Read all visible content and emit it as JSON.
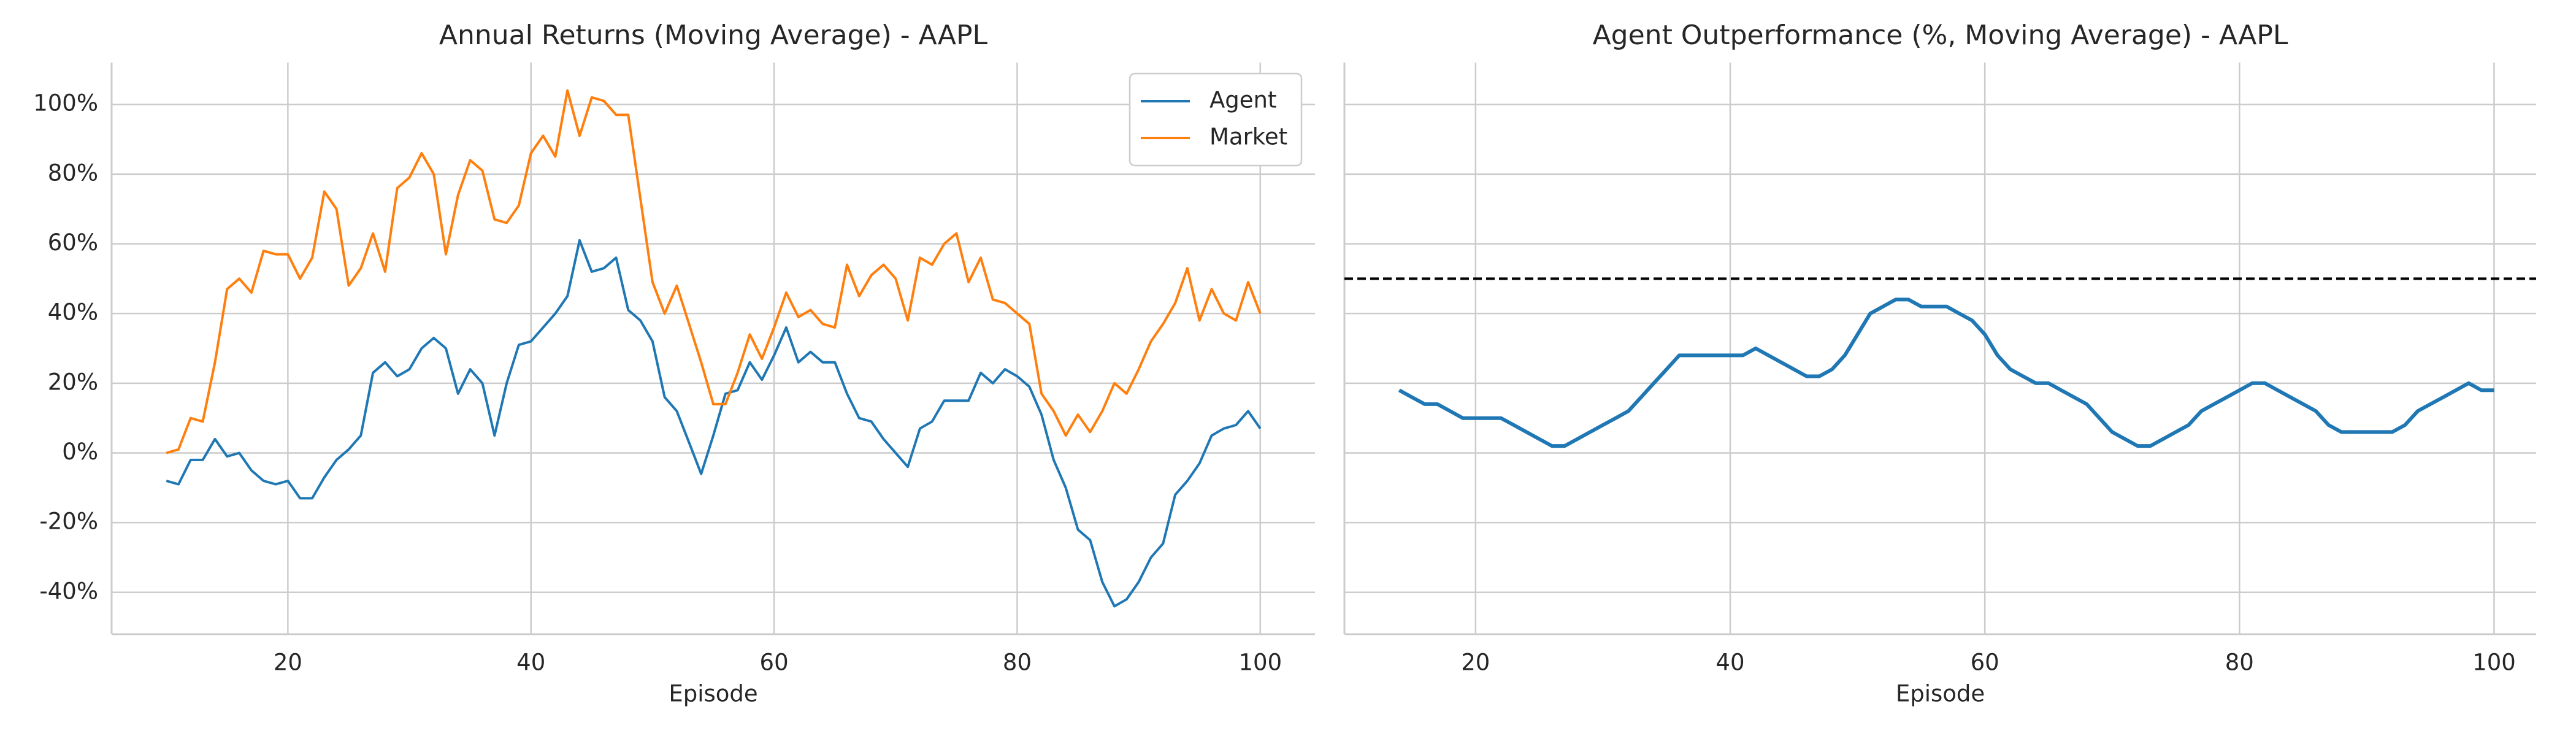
{
  "chart_data": [
    {
      "type": "line",
      "title": "Annual Returns (Moving Average) - AAPL",
      "xlabel": "Episode",
      "x": [
        10,
        11,
        12,
        13,
        14,
        15,
        16,
        17,
        18,
        19,
        20,
        21,
        22,
        23,
        24,
        25,
        26,
        27,
        28,
        29,
        30,
        31,
        32,
        33,
        34,
        35,
        36,
        37,
        38,
        39,
        40,
        41,
        42,
        43,
        44,
        45,
        46,
        47,
        48,
        49,
        50,
        51,
        52,
        53,
        54,
        55,
        56,
        57,
        58,
        59,
        60,
        61,
        62,
        63,
        64,
        65,
        66,
        67,
        68,
        69,
        70,
        71,
        72,
        73,
        74,
        75,
        76,
        77,
        78,
        79,
        80,
        81,
        82,
        83,
        84,
        85,
        86,
        87,
        88,
        89,
        90,
        91,
        92,
        93,
        94,
        95,
        96,
        97,
        98,
        99,
        100
      ],
      "series": [
        {
          "name": "Agent",
          "color": "#1f77b4",
          "values": [
            -8,
            -9,
            -2,
            -2,
            4,
            -1,
            0,
            -5,
            -8,
            -9,
            -8,
            -13,
            -13,
            -7,
            -2,
            1,
            5,
            23,
            26,
            22,
            24,
            30,
            33,
            30,
            17,
            24,
            20,
            5,
            20,
            31,
            32,
            36,
            40,
            45,
            61,
            52,
            53,
            56,
            41,
            38,
            32,
            16,
            12,
            3,
            -6,
            5,
            17,
            18,
            26,
            21,
            28,
            36,
            26,
            29,
            26,
            26,
            17,
            10,
            9,
            4,
            0,
            -4,
            7,
            9,
            15,
            15,
            15,
            23,
            20,
            24,
            22,
            19,
            11,
            -2,
            -10,
            -22,
            -25,
            -37,
            -44,
            -42,
            -37,
            -30,
            -26,
            -12,
            -8,
            -3,
            5,
            7,
            8,
            12,
            7
          ]
        },
        {
          "name": "Market",
          "color": "#ff7f0e",
          "values": [
            0,
            1,
            10,
            9,
            26,
            47,
            50,
            46,
            58,
            57,
            57,
            50,
            56,
            75,
            70,
            48,
            53,
            63,
            52,
            76,
            79,
            86,
            80,
            57,
            74,
            84,
            81,
            67,
            66,
            71,
            86,
            91,
            85,
            104,
            91,
            102,
            101,
            97,
            97,
            73,
            49,
            40,
            48,
            37,
            26,
            14,
            14,
            23,
            34,
            27,
            36,
            46,
            39,
            41,
            37,
            36,
            54,
            45,
            51,
            54,
            50,
            38,
            56,
            54,
            60,
            63,
            49,
            56,
            44,
            43,
            40,
            37,
            17,
            12,
            5,
            11,
            6,
            12,
            20,
            17,
            24,
            32,
            37,
            43,
            53,
            38,
            47,
            40,
            38,
            49,
            40
          ]
        }
      ],
      "xlim": [
        5.5,
        104.5
      ],
      "xticks": [
        20,
        40,
        60,
        80,
        100
      ],
      "ylim": [
        -52,
        112
      ],
      "yticks": [
        {
          "value": -40,
          "label": "-40%"
        },
        {
          "value": -20,
          "label": "-20%"
        },
        {
          "value": 0,
          "label": "0%"
        },
        {
          "value": 20,
          "label": "20%"
        },
        {
          "value": 40,
          "label": "40%"
        },
        {
          "value": 60,
          "label": "60%"
        },
        {
          "value": 80,
          "label": "80%"
        },
        {
          "value": 100,
          "label": "100%"
        }
      ],
      "grid": true,
      "legend": "upper right"
    },
    {
      "type": "line",
      "title": "Agent Outperformance (%, Moving Average) - AAPL",
      "xlabel": "Episode",
      "x": [
        14,
        15,
        16,
        17,
        18,
        19,
        20,
        21,
        22,
        23,
        24,
        25,
        26,
        27,
        28,
        29,
        30,
        31,
        32,
        33,
        34,
        35,
        36,
        37,
        38,
        39,
        40,
        41,
        42,
        43,
        44,
        45,
        46,
        47,
        48,
        49,
        50,
        51,
        52,
        53,
        54,
        55,
        56,
        57,
        58,
        59,
        60,
        61,
        62,
        63,
        64,
        65,
        66,
        67,
        68,
        69,
        70,
        71,
        72,
        73,
        74,
        75,
        76,
        77,
        78,
        79,
        80,
        81,
        82,
        83,
        84,
        85,
        86,
        87,
        88,
        89,
        90,
        91,
        92,
        93,
        94,
        95,
        96,
        97,
        98,
        99,
        100
      ],
      "series": [
        {
          "color": "#1f77b4",
          "values": [
            18,
            16,
            14,
            14,
            12,
            10,
            10,
            10,
            10,
            8,
            6,
            4,
            2,
            2,
            4,
            6,
            8,
            10,
            12,
            16,
            20,
            24,
            28,
            28,
            28,
            28,
            28,
            28,
            30,
            28,
            26,
            24,
            22,
            22,
            24,
            28,
            34,
            40,
            42,
            44,
            44,
            42,
            42,
            42,
            40,
            38,
            34,
            28,
            24,
            22,
            20,
            20,
            18,
            16,
            14,
            10,
            6,
            4,
            2,
            2,
            4,
            6,
            8,
            12,
            14,
            16,
            18,
            20,
            20,
            18,
            16,
            14,
            12,
            8,
            6,
            6,
            6,
            6,
            6,
            8,
            12,
            14,
            16,
            18,
            20,
            18,
            18
          ]
        }
      ],
      "hline": {
        "value": 50,
        "color": "#000000"
      },
      "xlim": [
        9.7,
        103.3
      ],
      "xticks": [
        20,
        40,
        60,
        80,
        100
      ],
      "ylim": [
        -52,
        112
      ],
      "yticks": [
        -40,
        -20,
        0,
        20,
        40,
        60,
        80,
        100
      ],
      "grid": true
    }
  ]
}
